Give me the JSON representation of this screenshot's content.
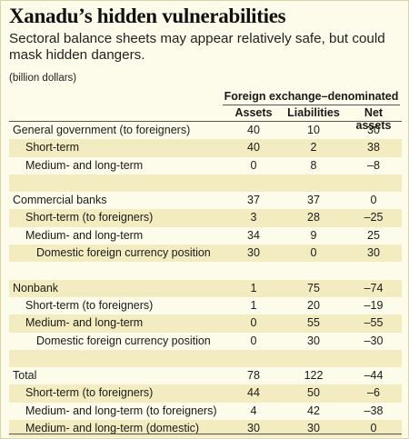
{
  "title": "Xanadu’s hidden vulnerabilities",
  "subtitle": "Sectoral balance sheets may appear relatively safe, but could mask hidden dangers.",
  "unit": "(billion dollars)",
  "group_header": "Foreign exchange–denominated",
  "columns": [
    "Assets",
    "Liabilities",
    "Net assets"
  ],
  "rows": [
    {
      "label": "General government (to foreigners)",
      "indent": 0,
      "assets": "40",
      "liabilities": "10",
      "net": "30"
    },
    {
      "label": "Short-term",
      "indent": 1,
      "assets": "40",
      "liabilities": "2",
      "net": "38"
    },
    {
      "label": "Medium- and long-term",
      "indent": 1,
      "assets": "0",
      "liabilities": "8",
      "net": "–8"
    },
    {
      "label": "",
      "indent": 0,
      "assets": "",
      "liabilities": "",
      "net": ""
    },
    {
      "label": "Commercial banks",
      "indent": 0,
      "assets": "37",
      "liabilities": "37",
      "net": "0"
    },
    {
      "label": "Short-term (to foreigners)",
      "indent": 1,
      "assets": "3",
      "liabilities": "28",
      "net": "–25"
    },
    {
      "label": "Medium- and long-term",
      "indent": 1,
      "assets": "34",
      "liabilities": "9",
      "net": "25"
    },
    {
      "label": "Domestic foreign currency position",
      "indent": 2,
      "assets": "30",
      "liabilities": "0",
      "net": "30"
    },
    {
      "label": "",
      "indent": 0,
      "assets": "",
      "liabilities": "",
      "net": ""
    },
    {
      "label": "Nonbank",
      "indent": 0,
      "assets": "1",
      "liabilities": "75",
      "net": "–74"
    },
    {
      "label": "Short-term (to foreigners)",
      "indent": 1,
      "assets": "1",
      "liabilities": "20",
      "net": "–19"
    },
    {
      "label": "Medium- and long-term",
      "indent": 1,
      "assets": "0",
      "liabilities": "55",
      "net": "–55"
    },
    {
      "label": "Domestic foreign currency position",
      "indent": 2,
      "assets": "0",
      "liabilities": "30",
      "net": "–30"
    },
    {
      "label": "",
      "indent": 0,
      "assets": "",
      "liabilities": "",
      "net": ""
    },
    {
      "label": "Total",
      "indent": 0,
      "assets": "78",
      "liabilities": "122",
      "net": "–44"
    },
    {
      "label": "Short-term (to foreigners)",
      "indent": 1,
      "assets": "44",
      "liabilities": "50",
      "net": "–6"
    },
    {
      "label": "Medium- and long-term (to foreigners)",
      "indent": 1,
      "assets": "4",
      "liabilities": "42",
      "net": "–38"
    },
    {
      "label": "Medium- and long-term (domestic)",
      "indent": 1,
      "assets": "30",
      "liabilities": "30",
      "net": "0"
    }
  ]
}
